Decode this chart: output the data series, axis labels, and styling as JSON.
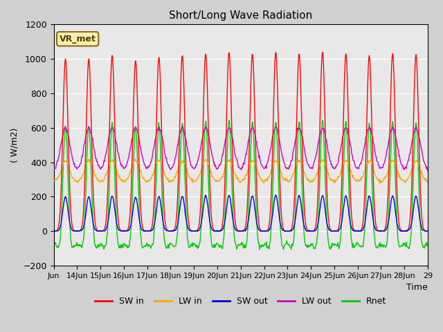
{
  "title": "Short/Long Wave Radiation",
  "ylabel": "( W/m2)",
  "xlabel": "Time",
  "annotation": "VR_met",
  "ylim": [
    -200,
    1200
  ],
  "yticks": [
    -200,
    0,
    200,
    400,
    600,
    800,
    1000,
    1200
  ],
  "xtick_labels": [
    "Jun",
    "14Jun",
    "15Jun",
    "16Jun",
    "17Jun",
    "18Jun",
    "19Jun",
    "20Jun",
    "21Jun",
    "22Jun",
    "23Jun",
    "24Jun",
    "25Jun",
    "26Jun",
    "27Jun",
    "28Jun",
    "29"
  ],
  "legend": [
    {
      "label": "SW in",
      "color": "#ff0000"
    },
    {
      "label": "LW in",
      "color": "#ffa500"
    },
    {
      "label": "SW out",
      "color": "#0000cc"
    },
    {
      "label": "LW out",
      "color": "#cc00cc"
    },
    {
      "label": "Rnet",
      "color": "#00cc00"
    }
  ],
  "n_days": 16,
  "colors": {
    "SW_in": "#ff0000",
    "LW_in": "#ffa500",
    "SW_out": "#0000dd",
    "LW_out": "#cc00cc",
    "Rnet": "#00cc00"
  }
}
